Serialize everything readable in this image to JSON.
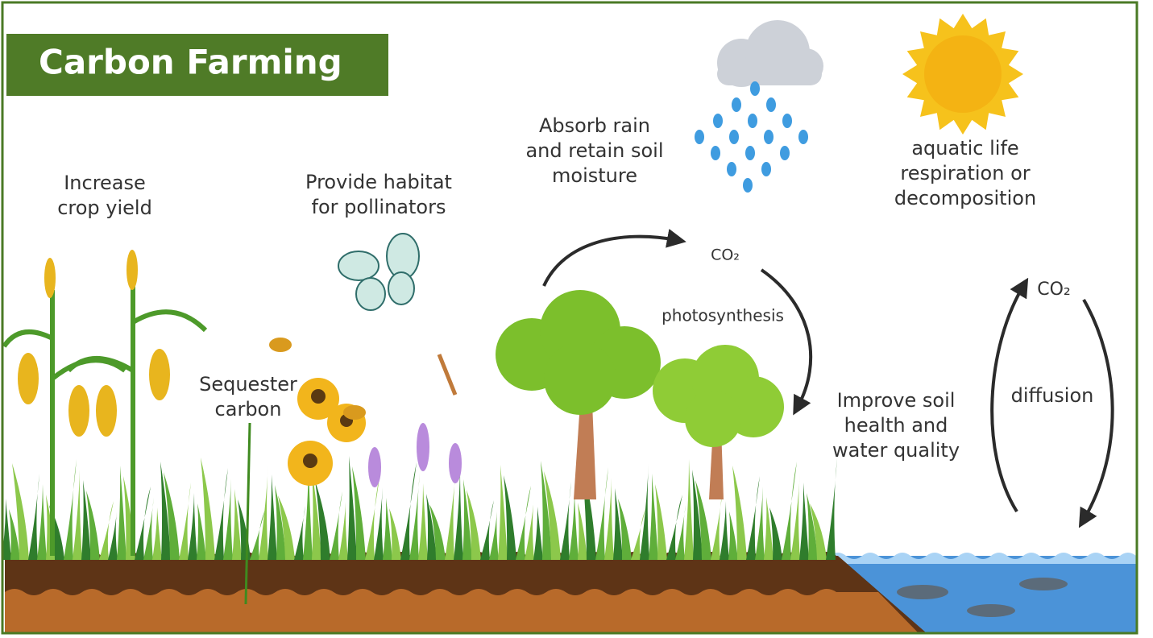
{
  "title": "Carbon Farming",
  "labels": [
    {
      "lines": [
        "Increase",
        "crop yield"
      ]
    },
    {
      "lines": [
        "Provide habitat",
        "for pollinators"
      ]
    },
    {
      "lines": [
        "Absorb rain",
        "and retain soil",
        "moisture"
      ]
    },
    {
      "lines": [
        "aquatic life",
        "respiration or",
        "decomposition"
      ]
    },
    {
      "lines": [
        "Sequester",
        "carbon"
      ]
    },
    {
      "lines": [
        "Improve soil",
        "health and",
        "water quality"
      ]
    }
  ],
  "cycles": [
    {
      "gas": "CO₂",
      "process": "photosynthesis"
    },
    {
      "gas": "CO₂",
      "process": "diffusion"
    }
  ]
}
